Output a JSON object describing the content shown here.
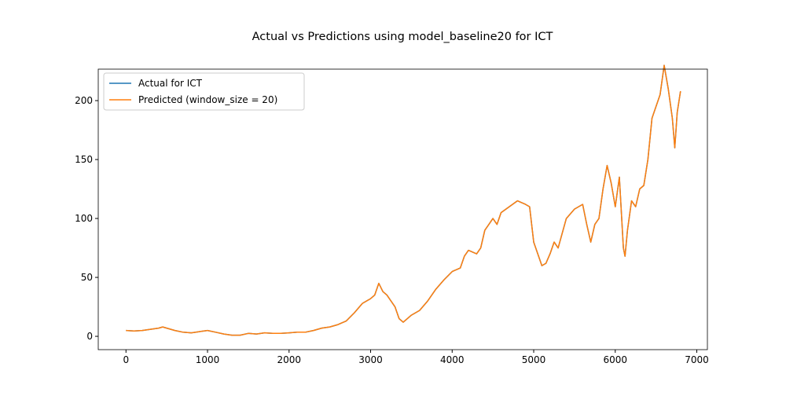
{
  "chart_data": {
    "type": "line",
    "title": "Actual vs Predictions using model_baseline20 for ICT",
    "x": [
      0,
      100,
      200,
      300,
      400,
      450,
      500,
      600,
      700,
      800,
      900,
      1000,
      1100,
      1200,
      1300,
      1400,
      1500,
      1600,
      1700,
      1800,
      1900,
      2000,
      2100,
      2200,
      2300,
      2400,
      2500,
      2600,
      2700,
      2800,
      2900,
      3000,
      3050,
      3100,
      3150,
      3200,
      3300,
      3350,
      3400,
      3450,
      3500,
      3600,
      3700,
      3800,
      3900,
      4000,
      4100,
      4150,
      4200,
      4300,
      4350,
      4400,
      4450,
      4500,
      4550,
      4600,
      4700,
      4800,
      4900,
      4950,
      5000,
      5050,
      5100,
      5150,
      5200,
      5250,
      5300,
      5400,
      5500,
      5600,
      5650,
      5700,
      5750,
      5800,
      5850,
      5900,
      5950,
      6000,
      6050,
      6100,
      6120,
      6150,
      6200,
      6250,
      6300,
      6350,
      6400,
      6450,
      6500,
      6550,
      6600,
      6650,
      6700,
      6730,
      6760,
      6800
    ],
    "series": [
      {
        "name": "Actual for ICT",
        "color": "#1f77b4",
        "values": [
          5,
          4.5,
          5,
          6,
          7,
          8,
          7,
          5,
          3.5,
          3,
          4,
          5,
          3.5,
          2,
          1,
          1,
          2.5,
          2,
          3,
          2.5,
          2.5,
          3,
          3.5,
          3.5,
          5,
          7,
          8,
          10,
          13,
          20,
          28,
          32,
          35,
          45,
          38,
          35,
          25,
          15,
          12,
          15,
          18,
          22,
          30,
          40,
          48,
          55,
          58,
          68,
          73,
          70,
          75,
          90,
          95,
          100,
          95,
          105,
          110,
          115,
          112,
          110,
          80,
          70,
          60,
          62,
          70,
          80,
          75,
          100,
          108,
          112,
          95,
          80,
          95,
          100,
          125,
          145,
          130,
          110,
          135,
          75,
          68,
          90,
          115,
          110,
          125,
          128,
          150,
          185,
          195,
          205,
          230,
          210,
          185,
          160,
          190,
          208
        ]
      },
      {
        "name": "Predicted (window_size = 20)",
        "color": "#ff7f0e",
        "values": [
          5,
          4.5,
          5,
          6,
          7,
          8,
          7,
          5,
          3.5,
          3,
          4,
          5,
          3.5,
          2,
          1,
          1,
          2.5,
          2,
          3,
          2.5,
          2.5,
          3,
          3.5,
          3.5,
          5,
          7,
          8,
          10,
          13,
          20,
          28,
          32,
          35,
          45,
          38,
          35,
          25,
          15,
          12,
          15,
          18,
          22,
          30,
          40,
          48,
          55,
          58,
          68,
          73,
          70,
          75,
          90,
          95,
          100,
          95,
          105,
          110,
          115,
          112,
          110,
          80,
          70,
          60,
          62,
          70,
          80,
          75,
          100,
          108,
          112,
          95,
          80,
          95,
          100,
          125,
          145,
          130,
          110,
          135,
          75,
          68,
          90,
          115,
          110,
          125,
          128,
          150,
          185,
          195,
          205,
          230,
          210,
          185,
          160,
          190,
          208
        ]
      }
    ],
    "xlim": [
      -340,
      7130
    ],
    "ylim": [
      -11.3,
      226.7
    ],
    "xticks": [
      0,
      1000,
      2000,
      3000,
      4000,
      5000,
      6000,
      7000
    ],
    "yticks": [
      0,
      50,
      100,
      150,
      200
    ],
    "legend": "upper left"
  }
}
